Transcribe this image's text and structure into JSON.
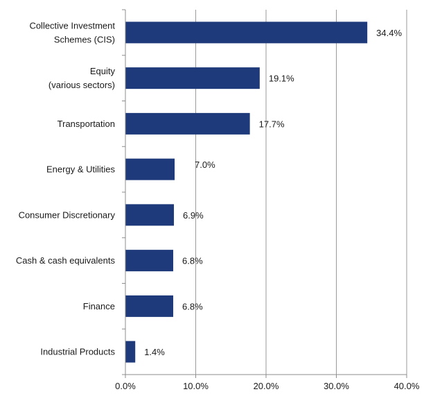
{
  "chart_data": {
    "type": "bar",
    "orientation": "horizontal",
    "categories": [
      [
        "Collective Investment",
        "Schemes (CIS)"
      ],
      [
        "Equity",
        "(various sectors)"
      ],
      [
        "Transportation"
      ],
      [
        "Energy & Utilities"
      ],
      [
        "Consumer Discretionary"
      ],
      [
        "Cash & cash equivalents"
      ],
      [
        "Finance"
      ],
      [
        "Industrial Products"
      ]
    ],
    "values": [
      34.4,
      19.1,
      17.7,
      7.0,
      6.9,
      6.8,
      6.8,
      1.4
    ],
    "value_labels": [
      "34.4%",
      "19.1%",
      "17.7%",
      "7.0%",
      "6.9%",
      "6.8%",
      "6.8%",
      "1.4%"
    ],
    "xlim": [
      0,
      40
    ],
    "xticks": [
      0,
      10,
      20,
      30,
      40
    ],
    "xtick_labels": [
      "0.0%",
      "10.0%",
      "20.0%",
      "30.0%",
      "40.0%"
    ],
    "grid": "vertical",
    "bar_color": "#1f3a7a",
    "title": "",
    "xlabel": "",
    "ylabel": ""
  }
}
